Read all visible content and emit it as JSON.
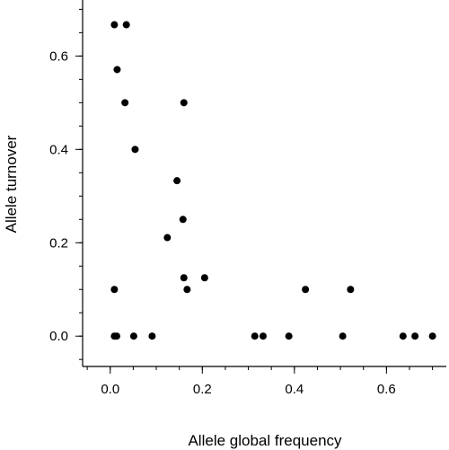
{
  "chart_data": {
    "type": "scatter",
    "xlabel": "Allele global frequency",
    "ylabel": "Allele turnover",
    "xlim": [
      -0.06,
      0.73
    ],
    "ylim": [
      -0.065,
      0.72
    ],
    "xticks": [
      0.0,
      0.2,
      0.4,
      0.6
    ],
    "yticks": [
      0.0,
      0.2,
      0.4,
      0.6
    ],
    "xtick_labels": [
      "0.0",
      "0.2",
      "0.4",
      "0.6"
    ],
    "ytick_labels": [
      "0.0",
      "0.2",
      "0.4",
      "0.6"
    ],
    "x_minor_step": 0.05,
    "y_minor_step": 0.05,
    "grid": false,
    "marker_color": "#000000",
    "points": [
      {
        "x": 0.009,
        "y": 0.667
      },
      {
        "x": 0.035,
        "y": 0.667
      },
      {
        "x": 0.015,
        "y": 0.571
      },
      {
        "x": 0.032,
        "y": 0.5
      },
      {
        "x": 0.16,
        "y": 0.5
      },
      {
        "x": 0.054,
        "y": 0.4
      },
      {
        "x": 0.145,
        "y": 0.333
      },
      {
        "x": 0.158,
        "y": 0.25
      },
      {
        "x": 0.124,
        "y": 0.211
      },
      {
        "x": 0.16,
        "y": 0.125
      },
      {
        "x": 0.205,
        "y": 0.125
      },
      {
        "x": 0.167,
        "y": 0.1
      },
      {
        "x": 0.009,
        "y": 0.1
      },
      {
        "x": 0.424,
        "y": 0.1
      },
      {
        "x": 0.522,
        "y": 0.1
      },
      {
        "x": 0.009,
        "y": 0.0
      },
      {
        "x": 0.014,
        "y": 0.0
      },
      {
        "x": 0.051,
        "y": 0.0
      },
      {
        "x": 0.091,
        "y": 0.0
      },
      {
        "x": 0.314,
        "y": 0.0
      },
      {
        "x": 0.332,
        "y": 0.0
      },
      {
        "x": 0.388,
        "y": 0.0
      },
      {
        "x": 0.505,
        "y": 0.0
      },
      {
        "x": 0.636,
        "y": 0.0
      },
      {
        "x": 0.662,
        "y": 0.0
      },
      {
        "x": 0.7,
        "y": 0.0
      }
    ]
  }
}
